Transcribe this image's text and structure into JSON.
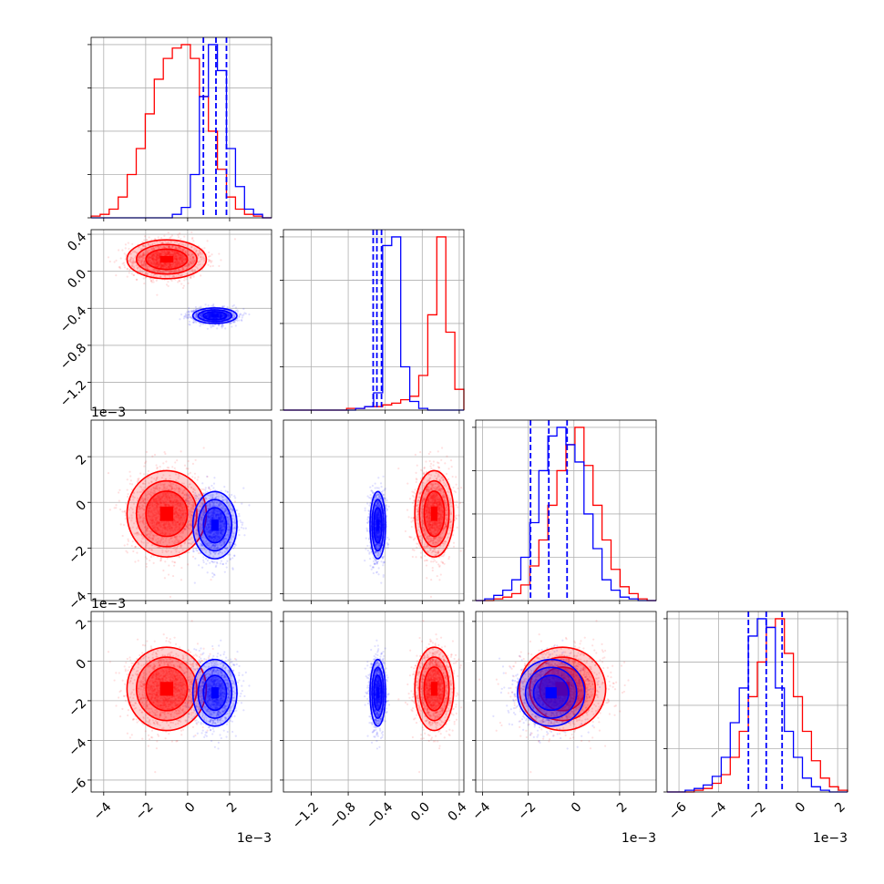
{
  "chart_data": {
    "type": "corner",
    "colors": {
      "red": "#ff0000",
      "blue": "#0000ff"
    },
    "variables": [
      {
        "range": [
          -4.6,
          4.0
        ],
        "ticks": [
          -4,
          -2,
          0,
          2
        ],
        "tick_labels": [
          "−4",
          "−2",
          "0",
          "2"
        ],
        "offset": "1e−3"
      },
      {
        "range": [
          -1.5,
          0.45
        ],
        "ticks": [
          -1.2,
          -0.8,
          -0.4,
          0.0,
          0.4
        ],
        "tick_labels": [
          "−1.2",
          "−0.8",
          "−0.4",
          "0.0",
          "0.4"
        ],
        "offset": ""
      },
      {
        "range": [
          -4.3,
          3.6
        ],
        "ticks": [
          -4,
          -2,
          0,
          2
        ],
        "tick_labels": [
          "−4",
          "−2",
          "0",
          "2"
        ],
        "offset": "1e−3"
      },
      {
        "range": [
          -6.6,
          2.5
        ],
        "ticks": [
          -6,
          -4,
          -2,
          0,
          2
        ],
        "tick_labels": [
          "−6",
          "−4",
          "−2",
          "0",
          "2"
        ],
        "offset": "1e−3"
      }
    ],
    "row_offsets": [
      "",
      "",
      "1e−3",
      "1e−3"
    ],
    "series": [
      {
        "name": "red",
        "color": "#ff0000",
        "mean": [
          -1.0,
          0.13,
          -0.5,
          -1.4
        ],
        "sd": [
          0.9,
          0.1,
          0.9,
          1.0
        ],
        "cov_r": [
          [
            0,
            1,
            0.2
          ],
          [
            0,
            2,
            0.1
          ],
          [
            0,
            3,
            0.0
          ],
          [
            1,
            2,
            0.0
          ],
          [
            1,
            3,
            0.0
          ],
          [
            2,
            3,
            0.0
          ]
        ],
        "hist": [
          [
            0.01,
            0.02,
            0.05,
            0.12,
            0.25,
            0.4,
            0.6,
            0.8,
            0.92,
            0.98,
            1.0,
            0.92,
            0.7,
            0.5,
            0.28,
            0.12,
            0.05,
            0.02,
            0.01,
            0.0
          ],
          [
            0.0,
            0.0,
            0.0,
            0.0,
            0.0,
            0.0,
            0.0,
            0.01,
            0.01,
            0.02,
            0.02,
            0.03,
            0.04,
            0.06,
            0.08,
            0.2,
            0.55,
            1.0,
            0.45,
            0.12
          ],
          [
            0.0,
            0.0,
            0.01,
            0.02,
            0.04,
            0.09,
            0.2,
            0.35,
            0.55,
            0.75,
            0.9,
            1.0,
            0.78,
            0.55,
            0.35,
            0.18,
            0.08,
            0.04,
            0.01,
            0.0
          ],
          [
            0.0,
            0.0,
            0.0,
            0.01,
            0.02,
            0.05,
            0.1,
            0.2,
            0.35,
            0.55,
            0.75,
            0.95,
            1.0,
            0.8,
            0.55,
            0.35,
            0.18,
            0.08,
            0.03,
            0.01
          ]
        ],
        "quantiles": []
      },
      {
        "name": "blue",
        "color": "#0000ff",
        "mean": [
          1.3,
          -0.48,
          -1.0,
          -1.6
        ],
        "sd": [
          0.5,
          0.04,
          0.7,
          0.8
        ],
        "cov_r": [
          [
            0,
            1,
            0.0
          ],
          [
            0,
            2,
            0.0
          ],
          [
            0,
            3,
            0.0
          ],
          [
            1,
            2,
            0.0
          ],
          [
            1,
            3,
            0.0
          ],
          [
            2,
            3,
            0.1
          ]
        ],
        "hist": [
          [
            0.0,
            0.0,
            0.0,
            0.0,
            0.0,
            0.0,
            0.0,
            0.0,
            0.0,
            0.02,
            0.06,
            0.25,
            0.7,
            1.0,
            0.85,
            0.4,
            0.18,
            0.05,
            0.02,
            0.0
          ],
          [
            0.0,
            0.0,
            0.0,
            0.0,
            0.0,
            0.0,
            0.0,
            0.0,
            0.01,
            0.02,
            0.1,
            0.95,
            1.0,
            0.25,
            0.05,
            0.01,
            0.0,
            0.0,
            0.0,
            0.0
          ],
          [
            0.0,
            0.01,
            0.03,
            0.06,
            0.12,
            0.25,
            0.45,
            0.75,
            0.95,
            1.0,
            0.9,
            0.8,
            0.5,
            0.3,
            0.12,
            0.06,
            0.02,
            0.01,
            0.0,
            0.0
          ],
          [
            0.0,
            0.0,
            0.01,
            0.02,
            0.04,
            0.09,
            0.2,
            0.4,
            0.6,
            0.9,
            1.0,
            0.95,
            0.6,
            0.35,
            0.2,
            0.08,
            0.03,
            0.01,
            0.0,
            0.0
          ]
        ],
        "quantiles": [
          [
            0.75,
            1.35,
            1.85
          ],
          [
            -0.53,
            -0.49,
            -0.44
          ],
          [
            -1.9,
            -1.1,
            -0.3
          ],
          [
            -2.5,
            -1.6,
            -0.8
          ]
        ]
      }
    ],
    "grid": true,
    "xlabel": "",
    "ylabel": "",
    "title": ""
  }
}
